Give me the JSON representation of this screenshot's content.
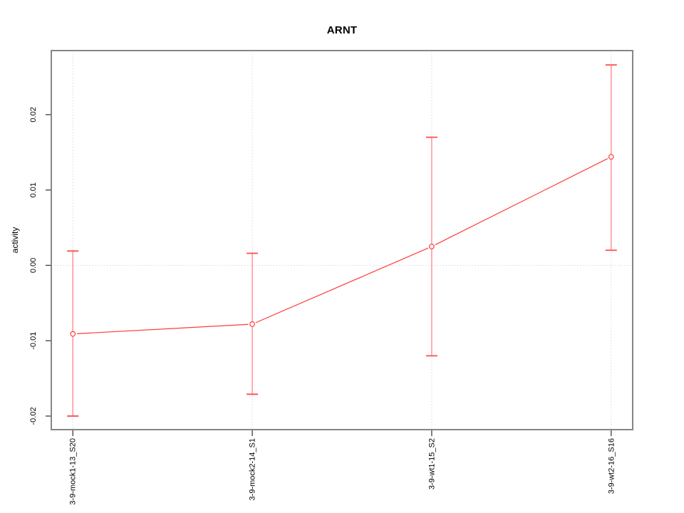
{
  "title": "ARNT",
  "colors": {
    "series": "#ff3b3b",
    "errorbar_stem": "#ff8c8c",
    "errorbar_cap": "#ff4d4d",
    "marker_fill": "#ffffff",
    "grid": "#d6d6d6",
    "box": "#868686",
    "tick": "#3c3c3c",
    "text": "#000000",
    "background": "#ffffff"
  },
  "chart_data": {
    "type": "line",
    "title": "ARNT",
    "xlabel": "",
    "ylabel": "activity",
    "categories": [
      "3-9-mock1-13_S20",
      "3-9-mock2-14_S1",
      "3-9-wt1-15_S2",
      "3-9-wt2-16_S16"
    ],
    "series": [
      {
        "name": "activity",
        "values": [
          -0.0091,
          -0.0078,
          0.0025,
          0.0144
        ],
        "error_low": [
          -0.02,
          -0.0171,
          -0.012,
          0.002
        ],
        "error_high": [
          0.0019,
          0.0016,
          0.017,
          0.0266
        ]
      }
    ],
    "y_ticks": [
      -0.02,
      -0.01,
      0.0,
      0.01,
      0.02
    ],
    "y_tick_labels": [
      "-0.02",
      "-0.01",
      "0.00",
      "0.01",
      "0.02"
    ],
    "ylim": [
      -0.0218,
      0.0285
    ],
    "xlim": [
      0.88,
      4.12
    ],
    "grid": "dotted vertical line at each category; dotted horizontal line at y=0",
    "legend_position": "none",
    "point_style": "open-circle",
    "x_label_rotation": -90,
    "y_label_rotation": -90
  }
}
